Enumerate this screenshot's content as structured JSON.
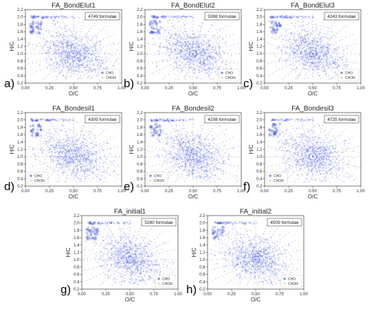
{
  "chart_data": [
    {
      "type": "scatter",
      "panel_label": "a)",
      "title": "FA_BondElut1",
      "annotation": "4749 formulae",
      "xlabel": "O/C",
      "ylabel": "H/C",
      "xlim": [
        0,
        1.0
      ],
      "ylim": [
        0.2,
        2.2
      ],
      "xticks": [
        "0.00",
        "0.25",
        "0.50",
        "0.75",
        "1.00"
      ],
      "yticks": [
        "0.2",
        "0.4",
        "0.6",
        "0.8",
        "1.0",
        "1.2",
        "1.4",
        "1.6",
        "1.8",
        "2.0",
        "2.2"
      ],
      "legend": [
        "CHO",
        "CHON"
      ],
      "legend_position": "lower-right",
      "series_colors": {
        "CHO": "#3344dd",
        "CHON": "#d8cf86"
      },
      "series": [
        {
          "name": "CHO",
          "center": [
            0.5,
            1.0
          ],
          "density": "high"
        },
        {
          "name": "CHON",
          "center": [
            0.75,
            0.9
          ],
          "density": "low"
        }
      ]
    },
    {
      "type": "scatter",
      "panel_label": "b)",
      "title": "FA_BondElut2",
      "annotation": "5398 formulae",
      "xlabel": "O/C",
      "ylabel": "H/C",
      "xlim": [
        0,
        1.0
      ],
      "ylim": [
        0.2,
        2.2
      ],
      "xticks": [
        "0.00",
        "0.25",
        "0.50",
        "0.75",
        "1.00"
      ],
      "yticks": [
        "0.2",
        "0.4",
        "0.6",
        "0.8",
        "1.0",
        "1.2",
        "1.4",
        "1.6",
        "1.8",
        "2.0",
        "2.2"
      ],
      "legend": [
        "CHO",
        "CHON"
      ],
      "legend_position": "lower-right",
      "series_colors": {
        "CHO": "#3344dd",
        "CHON": "#d8cf86"
      },
      "series": [
        {
          "name": "CHO",
          "center": [
            0.5,
            1.0
          ],
          "density": "high"
        },
        {
          "name": "CHON",
          "center": [
            0.75,
            0.9
          ],
          "density": "low"
        }
      ]
    },
    {
      "type": "scatter",
      "panel_label": "c)",
      "title": "FA_BondElut3",
      "annotation": "4243 formulae",
      "xlabel": "O/C",
      "ylabel": "H/C",
      "xlim": [
        0,
        1.0
      ],
      "ylim": [
        0.2,
        2.2
      ],
      "xticks": [
        "0.00",
        "0.25",
        "0.50",
        "0.75",
        "1.00"
      ],
      "yticks": [
        "0.2",
        "0.4",
        "0.6",
        "0.8",
        "1.0",
        "1.2",
        "1.4",
        "1.6",
        "1.8",
        "2.0",
        "2.2"
      ],
      "legend": [
        "CHO",
        "CHON"
      ],
      "legend_position": "lower-right",
      "series_colors": {
        "CHO": "#3344dd",
        "CHON": "#d8cf86"
      },
      "series": [
        {
          "name": "CHO",
          "center": [
            0.5,
            1.0
          ],
          "density": "high"
        },
        {
          "name": "CHON",
          "center": [
            0.75,
            0.9
          ],
          "density": "low"
        }
      ]
    },
    {
      "type": "scatter",
      "panel_label": "d)",
      "title": "FA_Bondesil1",
      "annotation": "4309 formulae",
      "xlabel": "O/C",
      "ylabel": "H/C",
      "xlim": [
        0,
        1.0
      ],
      "ylim": [
        0.2,
        2.2
      ],
      "xticks": [
        "0.00",
        "0.25",
        "0.50",
        "0.75",
        "1.00"
      ],
      "yticks": [
        "0.2",
        "0.4",
        "0.6",
        "0.8",
        "1.0",
        "1.2",
        "1.4",
        "1.6",
        "1.8",
        "2.0",
        "2.2"
      ],
      "legend": [
        "CHO",
        "CHON"
      ],
      "legend_position": "lower-left",
      "series_colors": {
        "CHO": "#3344dd",
        "CHON": "#d8cf86"
      },
      "series": [
        {
          "name": "CHO",
          "center": [
            0.5,
            1.0
          ],
          "density": "high"
        },
        {
          "name": "CHON",
          "center": [
            0.75,
            0.9
          ],
          "density": "low"
        }
      ]
    },
    {
      "type": "scatter",
      "panel_label": "e)",
      "title": "FA_Bondesil2",
      "annotation": "4208 formulae",
      "xlabel": "O/C",
      "ylabel": "H/C",
      "xlim": [
        0,
        1.0
      ],
      "ylim": [
        0.2,
        2.2
      ],
      "xticks": [
        "0.00",
        "0.25",
        "0.50",
        "0.75",
        "1.00"
      ],
      "yticks": [
        "0.2",
        "0.4",
        "0.6",
        "0.8",
        "1.0",
        "1.2",
        "1.4",
        "1.6",
        "1.8",
        "2.0",
        "2.2"
      ],
      "legend": [
        "CHO",
        "CHON"
      ],
      "legend_position": "lower-left",
      "series_colors": {
        "CHO": "#3344dd",
        "CHON": "#d8cf86"
      },
      "series": [
        {
          "name": "CHO",
          "center": [
            0.5,
            1.0
          ],
          "density": "high"
        },
        {
          "name": "CHON",
          "center": [
            0.75,
            0.9
          ],
          "density": "low"
        }
      ]
    },
    {
      "type": "scatter",
      "panel_label": "f)",
      "title": "FA_Bondesil3",
      "annotation": "4725 formulae",
      "xlabel": "O/C",
      "ylabel": "H/C",
      "xlim": [
        0,
        1.0
      ],
      "ylim": [
        0.2,
        2.2
      ],
      "xticks": [
        "0.00",
        "0.25",
        "0.50",
        "0.75",
        "1.00"
      ],
      "yticks": [
        "0.2",
        "0.4",
        "0.6",
        "0.8",
        "1.0",
        "1.2",
        "1.4",
        "1.6",
        "1.8",
        "2.0",
        "2.2"
      ],
      "legend": [
        "CHO",
        "CHON"
      ],
      "legend_position": "lower-left",
      "series_colors": {
        "CHO": "#3344dd",
        "CHON": "#d8cf86"
      },
      "series": [
        {
          "name": "CHO",
          "center": [
            0.5,
            1.0
          ],
          "density": "high"
        },
        {
          "name": "CHON",
          "center": [
            0.75,
            0.9
          ],
          "density": "low"
        }
      ]
    },
    {
      "type": "scatter",
      "panel_label": "g)",
      "title": "FA_initial1",
      "annotation": "5280 formulae",
      "xlabel": "O/C",
      "ylabel": "H/C",
      "xlim": [
        0,
        1.0
      ],
      "ylim": [
        0.2,
        2.2
      ],
      "xticks": [
        "0.00",
        "0.25",
        "0.50",
        "0.75",
        "1.00"
      ],
      "yticks": [
        "0.2",
        "0.4",
        "0.6",
        "0.8",
        "1.0",
        "1.2",
        "1.4",
        "1.6",
        "1.8",
        "2.0",
        "2.2"
      ],
      "legend": [
        "CHO",
        "CHON"
      ],
      "legend_position": "lower-right",
      "series_colors": {
        "CHO": "#3344dd",
        "CHON": "#d8cf86"
      },
      "series": [
        {
          "name": "CHO",
          "center": [
            0.5,
            1.0
          ],
          "density": "high"
        },
        {
          "name": "CHON",
          "center": [
            0.75,
            0.9
          ],
          "density": "low"
        }
      ]
    },
    {
      "type": "scatter",
      "panel_label": "h)",
      "title": "FA_initial2",
      "annotation": "4509 formulae",
      "xlabel": "O/C",
      "ylabel": "H/C",
      "xlim": [
        0,
        1.0
      ],
      "ylim": [
        0.2,
        2.2
      ],
      "xticks": [
        "0.00",
        "0.25",
        "0.50",
        "0.75",
        "1.00"
      ],
      "yticks": [
        "0.2",
        "0.4",
        "0.6",
        "0.8",
        "1.0",
        "1.2",
        "1.4",
        "1.6",
        "1.8",
        "2.0",
        "2.2"
      ],
      "legend": [
        "CHO",
        "CHON"
      ],
      "legend_position": "lower-right",
      "series_colors": {
        "CHO": "#3344dd",
        "CHON": "#d8cf86"
      },
      "series": [
        {
          "name": "CHO",
          "center": [
            0.5,
            1.0
          ],
          "density": "high"
        },
        {
          "name": "CHON",
          "center": [
            0.75,
            0.9
          ],
          "density": "low"
        }
      ]
    }
  ]
}
